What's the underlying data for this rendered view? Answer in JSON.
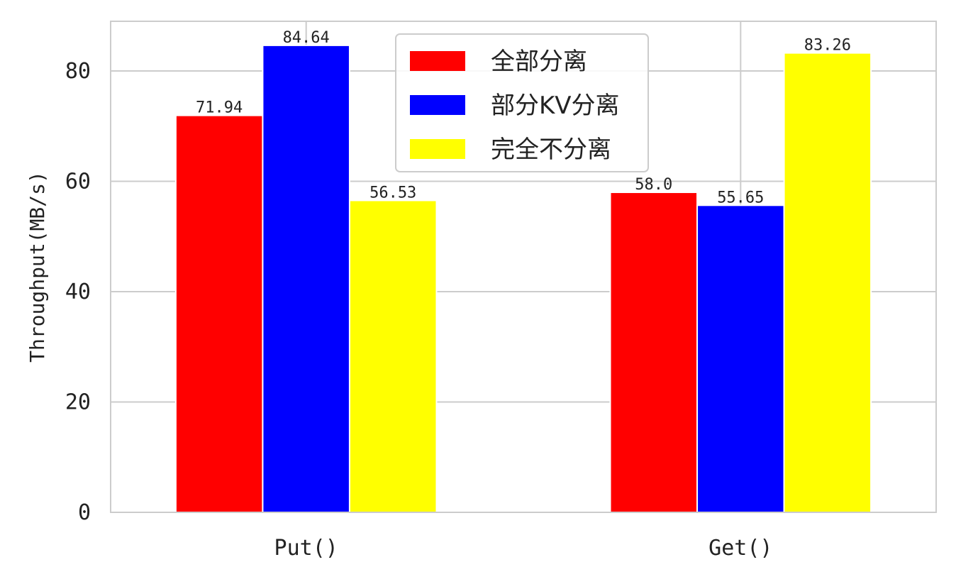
{
  "chart_data": {
    "type": "bar",
    "categories": [
      "Put()",
      "Get()"
    ],
    "series": [
      {
        "name": "全部分离",
        "color": "#ff0000",
        "values": [
          71.94,
          58.0
        ],
        "labels": [
          "71.94",
          "58.0"
        ]
      },
      {
        "name": "部分KV分离",
        "color": "#0000ff",
        "values": [
          84.64,
          55.65
        ],
        "labels": [
          "84.64",
          "55.65"
        ]
      },
      {
        "name": "完全不分离",
        "color": "#ffff00",
        "values": [
          56.53,
          83.26
        ],
        "labels": [
          "56.53",
          "83.26"
        ]
      }
    ],
    "title": "",
    "xlabel": "",
    "ylabel": "Throughput(MB/s)",
    "ylim": [
      0,
      89
    ],
    "yticks": [
      0,
      20,
      40,
      60,
      80
    ],
    "grid": true,
    "legend_position": "top-center"
  }
}
